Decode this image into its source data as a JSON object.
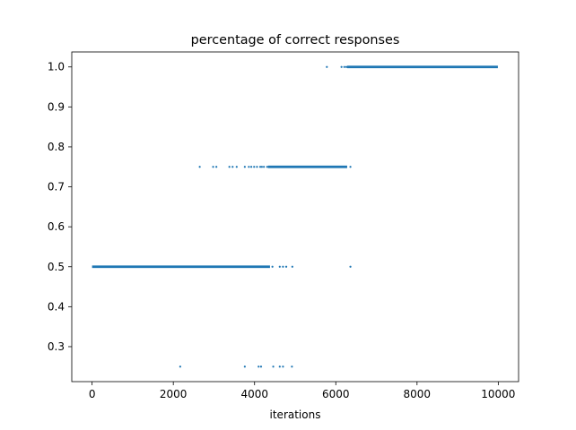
{
  "chart_data": {
    "type": "scatter",
    "title": "percentage of correct responses",
    "xlabel": "iterations",
    "ylabel": "",
    "xlim": [
      -500,
      10500
    ],
    "ylim": [
      0.2125,
      1.0375
    ],
    "xticks": [
      0,
      2000,
      4000,
      6000,
      8000,
      10000
    ],
    "yticks": [
      0.3,
      0.4,
      0.5,
      0.6,
      0.7,
      0.8,
      0.9,
      1.0
    ],
    "xtick_labels": [
      "0",
      "2000",
      "4000",
      "6000",
      "8000",
      "10000"
    ],
    "ytick_labels": [
      "0.3",
      "0.4",
      "0.5",
      "0.6",
      "0.7",
      "0.8",
      "0.9",
      "1.0"
    ],
    "grid": false,
    "marker_color": "#1f77b4",
    "series": [
      {
        "y": 0.25,
        "x": [
          2170,
          3760,
          4100,
          4160,
          4460,
          4620,
          4700,
          4920
        ]
      },
      {
        "y": 0.5,
        "dense_range": [
          0,
          4380
        ],
        "x": [
          4440,
          4620,
          4700,
          4780,
          4930,
          6360
        ]
      },
      {
        "y": 0.75,
        "x": [
          2650,
          2980,
          3060,
          3380,
          3460,
          3560,
          3760,
          3860,
          3920,
          3990,
          4060,
          4140,
          4180,
          4230,
          4310,
          6360
        ],
        "dense_range": [
          4330,
          6280
        ]
      },
      {
        "y": 1.0,
        "x": [
          5780,
          6140,
          6210,
          6260
        ],
        "dense_range": [
          6280,
          9990
        ]
      }
    ]
  }
}
